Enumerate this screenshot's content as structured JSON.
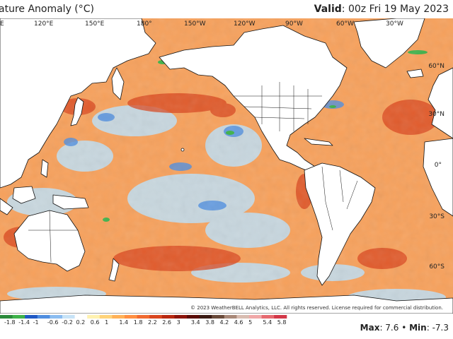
{
  "header": {
    "title": "ature Anomaly (°C)",
    "valid_label": "Valid",
    "valid_value": ": 00z Fri 19 May 2023"
  },
  "map": {
    "top_longitude_labels": [
      "E",
      "120°E",
      "150°E",
      "180°",
      "150°W",
      "120°W",
      "90°W",
      "60°W",
      "30°W"
    ],
    "right_latitude_labels": [
      "60°N",
      "30°N",
      "0°",
      "30°S",
      "60°S"
    ],
    "copyright": "© 2023 WeatherBELL Analytics, LLC. All rights reserved. License required for commercial distribution."
  },
  "legend": {
    "scale_values": [
      "-1.8",
      "-1.4",
      "-1",
      "-0.6",
      "-0.2",
      "0.2",
      "0.6",
      "1",
      "1.4",
      "1.8",
      "2.2",
      "2.6",
      "3",
      "3.4",
      "3.8",
      "4.2",
      "4.6",
      "5",
      "5.4",
      "5.8"
    ],
    "colors": [
      "#2a8a3a",
      "#3fb24a",
      "#1f58c4",
      "#4f8ee0",
      "#8bbcf0",
      "#c7e3f7",
      "#ffffff",
      "#fff2b0",
      "#ffd37a",
      "#ffb158",
      "#ff8f42",
      "#f06a30",
      "#d9461e",
      "#b8280f",
      "#8c1308",
      "#5a0a04",
      "#3a1a12",
      "#6a4a3a",
      "#a88878",
      "#d8bcb0",
      "#f0a8a8",
      "#e66a70",
      "#d23848"
    ],
    "max_label": "Max",
    "max_value": ": 7.6 •",
    "min_label": "Min",
    "min_value": ": -7.3"
  },
  "colors": {
    "land": "#ffffff",
    "coast": "#111111",
    "ocean_warm": "#f2894a",
    "ocean_cool": "#bfe0f5",
    "text": "#222222"
  }
}
